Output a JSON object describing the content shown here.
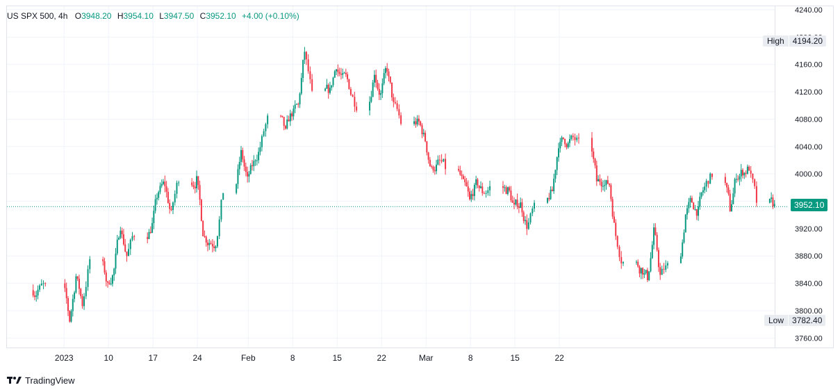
{
  "legend": {
    "symbol": "US SPX 500, 4h",
    "open_label": "O",
    "open": "3948.20",
    "high_label": "H",
    "high": "3954.10",
    "low_label": "L",
    "low": "3947.50",
    "close_label": "C",
    "close": "3952.10",
    "change": "+4.00 (+0.10%)"
  },
  "markers": {
    "high_label": "High",
    "high_value": "4194.20",
    "low_label": "Low",
    "low_value": "3782.40",
    "last_price": "3952.10"
  },
  "branding": {
    "name": "TradingView"
  },
  "colors": {
    "up": "#089981",
    "down": "#f23645",
    "grid": "#f0f3fa",
    "axis_text": "#131722",
    "price_line": "#089981"
  },
  "chart_data": {
    "type": "candlestick",
    "title": "",
    "symbol": "US SPX 500",
    "interval": "4h",
    "ylim": [
      3740,
      4240
    ],
    "y_ticks": [
      "4240.00",
      "4200.00",
      "4160.00",
      "4120.00",
      "4080.00",
      "4040.00",
      "4000.00",
      "3960.00",
      "3920.00",
      "3880.00",
      "3840.00",
      "3800.00",
      "3760.00"
    ],
    "x_ticks": [
      "2023",
      "10",
      "17",
      "24",
      "Feb",
      "8",
      "15",
      "22",
      "Mar",
      "8",
      "15",
      "22"
    ],
    "grid": true,
    "high": 4194.2,
    "low": 3782.4,
    "last_close": 3952.1,
    "path": [
      [
        "2022-12-29",
        3830
      ],
      [
        "2022-12-30",
        3835
      ],
      [
        "2023-01-03",
        3785
      ],
      [
        "2023-01-04",
        3850
      ],
      [
        "2023-01-05",
        3810
      ],
      [
        "2023-01-06",
        3875
      ],
      [
        "2023-01-09",
        3835
      ],
      [
        "2023-01-10",
        3860
      ],
      [
        "2023-01-11",
        3925
      ],
      [
        "2023-01-12",
        3880
      ],
      [
        "2023-01-13",
        3912
      ],
      [
        "2023-01-16",
        3925
      ],
      [
        "2023-01-17",
        3975
      ],
      [
        "2023-01-18",
        3985
      ],
      [
        "2023-01-19",
        3940
      ],
      [
        "2023-01-20",
        3995
      ],
      [
        "2023-01-23",
        3990
      ],
      [
        "2023-01-24",
        3915
      ],
      [
        "2023-01-25",
        3900
      ],
      [
        "2023-01-26",
        3900
      ],
      [
        "2023-01-27",
        3975
      ],
      [
        "2023-01-30",
        4030
      ],
      [
        "2023-01-31",
        3990
      ],
      [
        "2023-02-01",
        4015
      ],
      [
        "2023-02-02",
        4040
      ],
      [
        "2023-02-03",
        4080
      ],
      [
        "2023-02-06",
        4060
      ],
      [
        "2023-02-07",
        4090
      ],
      [
        "2023-02-08",
        4100
      ],
      [
        "2023-02-09",
        4180
      ],
      [
        "2023-02-10",
        4115
      ],
      [
        "2023-02-13",
        4120
      ],
      [
        "2023-02-14",
        4160
      ],
      [
        "2023-02-15",
        4140
      ],
      [
        "2023-02-16",
        4130
      ],
      [
        "2023-02-17",
        4100
      ],
      [
        "2023-02-20",
        4150
      ],
      [
        "2023-02-21",
        4115
      ],
      [
        "2023-02-22",
        4155
      ],
      [
        "2023-02-23",
        4100
      ],
      [
        "2023-02-24",
        4075
      ],
      [
        "2023-02-27",
        4075
      ],
      [
        "2023-02-28",
        4050
      ],
      [
        "2023-03-01",
        4005
      ],
      [
        "2023-03-02",
        4015
      ],
      [
        "2023-03-03",
        4010
      ],
      [
        "2023-03-06",
        3985
      ],
      [
        "2023-03-07",
        3960
      ],
      [
        "2023-03-08",
        3985
      ],
      [
        "2023-03-09",
        3975
      ],
      [
        "2023-03-10",
        3980
      ],
      [
        "2023-03-13",
        3975
      ],
      [
        "2023-03-14",
        3950
      ],
      [
        "2023-03-15",
        3955
      ],
      [
        "2023-03-16",
        3925
      ],
      [
        "2023-03-17",
        3950
      ],
      [
        "2023-03-20",
        3975
      ],
      [
        "2023-03-21",
        4045
      ],
      [
        "2023-03-22",
        4050
      ],
      [
        "2023-03-23",
        4050
      ],
      [
        "2023-03-24",
        4045
      ],
      [
        "2023-03-27",
        3990
      ],
      [
        "2023-03-28",
        3990
      ],
      [
        "2023-03-29",
        3985
      ],
      [
        "2023-03-30",
        3910
      ],
      [
        "2023-03-31",
        3870
      ],
      [
        "2023-04-03",
        3860
      ],
      [
        "2023-04-04",
        3850
      ],
      [
        "2023-04-05",
        3915
      ],
      [
        "2023-04-06",
        3850
      ],
      [
        "2023-04-07",
        3865
      ],
      [
        "2023-04-10",
        3940
      ],
      [
        "2023-04-11",
        3960
      ],
      [
        "2023-04-12",
        3945
      ],
      [
        "2023-04-13",
        3980
      ],
      [
        "2023-04-14",
        4000
      ],
      [
        "2023-04-17",
        3950
      ],
      [
        "2023-04-18",
        4000
      ],
      [
        "2023-04-19",
        4005
      ],
      [
        "2023-04-20",
        4010
      ],
      [
        "2023-04-21",
        3960
      ],
      [
        "2023-04-24",
        3952
      ]
    ]
  }
}
